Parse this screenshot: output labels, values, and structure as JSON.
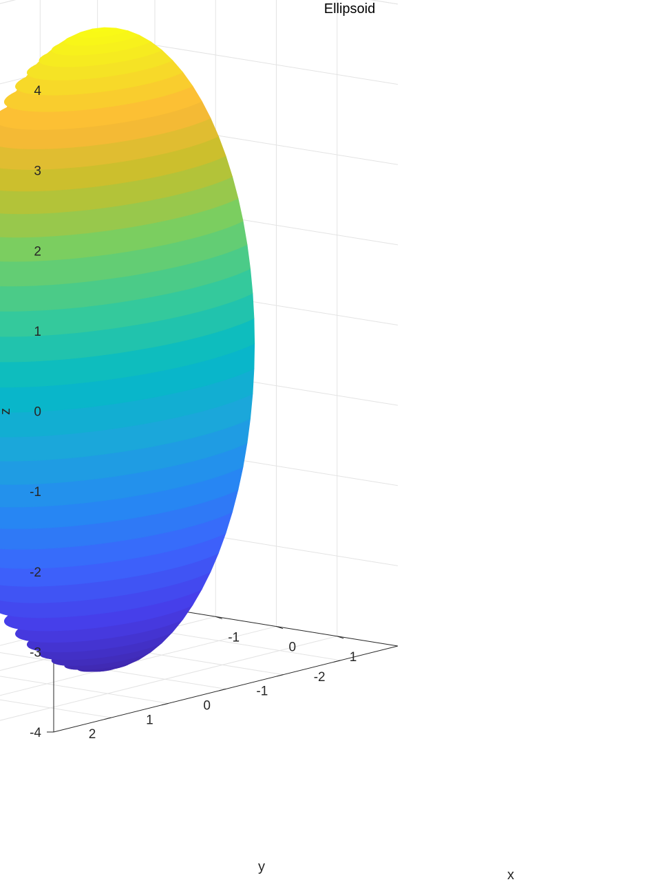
{
  "chart_data": {
    "type": "surface",
    "title": "Ellipsoid",
    "xlabel": "x",
    "ylabel": "y",
    "zlabel": "z",
    "xlim": [
      -2,
      2
    ],
    "ylim": [
      -3,
      3
    ],
    "zlim": [
      -4,
      4
    ],
    "x_ticks": [
      -1,
      0,
      1
    ],
    "x_tick_labels": [
      "-1",
      "0",
      "1"
    ],
    "y_ticks": [
      -2,
      -1,
      0,
      1,
      2
    ],
    "y_tick_labels": [
      "-2",
      "-1",
      "0",
      "1",
      "2"
    ],
    "z_ticks": [
      -4,
      -3,
      -2,
      -1,
      0,
      1,
      2,
      3,
      4
    ],
    "z_tick_labels": [
      "-4",
      "-3",
      "-2",
      "-1",
      "0",
      "1",
      "2",
      "3",
      "4"
    ],
    "grid": true,
    "colormap": "parula",
    "surface": {
      "shape": "ellipsoid",
      "center": [
        0,
        0,
        0
      ],
      "semi_axes": [
        1.5,
        2.5,
        4
      ],
      "color_by": "z",
      "bands": 40
    },
    "colors": {
      "low": "#3e26a8",
      "mid": "#00b4c8",
      "high": "#f9fb15"
    }
  }
}
